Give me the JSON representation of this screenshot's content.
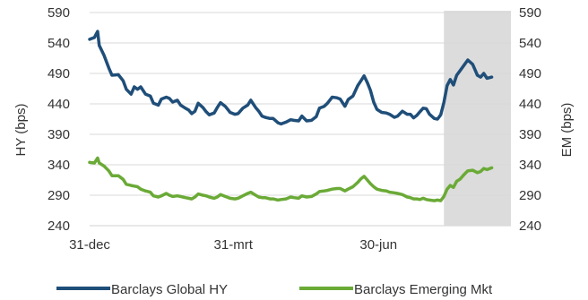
{
  "chart_data": {
    "type": "line",
    "title": "",
    "xlabel": "",
    "ylabel": "HY (bps)",
    "y2label": "EM (bps)",
    "ylim": [
      240,
      590
    ],
    "y2lim": [
      240,
      590
    ],
    "yticks": [
      590,
      540,
      490,
      440,
      390,
      340,
      290,
      240
    ],
    "xticks": [
      {
        "label": "31-dec",
        "day": 0
      },
      {
        "label": "31-mrt",
        "day": 90
      },
      {
        "label": "30-jun",
        "day": 181
      }
    ],
    "xlim_days": [
      0,
      264
    ],
    "shaded_region_days": [
      222,
      264
    ],
    "grid": true,
    "legend_position": "bottom",
    "series": [
      {
        "name": "Barclays Global HY",
        "color": "#1f4e79",
        "axis": "left",
        "points": [
          [
            0,
            546
          ],
          [
            3,
            549
          ],
          [
            5,
            559
          ],
          [
            6,
            536
          ],
          [
            9,
            520
          ],
          [
            12,
            499
          ],
          [
            14,
            487
          ],
          [
            18,
            488
          ],
          [
            21,
            478
          ],
          [
            23,
            464
          ],
          [
            26,
            456
          ],
          [
            28,
            468
          ],
          [
            30,
            464
          ],
          [
            32,
            468
          ],
          [
            35,
            456
          ],
          [
            38,
            453
          ],
          [
            40,
            441
          ],
          [
            43,
            438
          ],
          [
            45,
            448
          ],
          [
            48,
            451
          ],
          [
            50,
            449
          ],
          [
            52,
            443
          ],
          [
            55,
            446
          ],
          [
            57,
            438
          ],
          [
            60,
            433
          ],
          [
            62,
            430
          ],
          [
            64,
            424
          ],
          [
            66,
            428
          ],
          [
            68,
            441
          ],
          [
            71,
            434
          ],
          [
            73,
            427
          ],
          [
            75,
            422
          ],
          [
            78,
            425
          ],
          [
            80,
            434
          ],
          [
            82,
            442
          ],
          [
            85,
            436
          ],
          [
            88,
            426
          ],
          [
            91,
            423
          ],
          [
            93,
            424
          ],
          [
            96,
            433
          ],
          [
            99,
            438
          ],
          [
            101,
            446
          ],
          [
            104,
            434
          ],
          [
            106,
            428
          ],
          [
            108,
            420
          ],
          [
            110,
            418
          ],
          [
            113,
            416
          ],
          [
            115,
            416
          ],
          [
            118,
            409
          ],
          [
            120,
            407
          ],
          [
            123,
            410
          ],
          [
            126,
            414
          ],
          [
            128,
            413
          ],
          [
            131,
            412
          ],
          [
            133,
            420
          ],
          [
            136,
            412
          ],
          [
            139,
            413
          ],
          [
            142,
            419
          ],
          [
            144,
            433
          ],
          [
            147,
            436
          ],
          [
            149,
            441
          ],
          [
            152,
            451
          ],
          [
            155,
            450
          ],
          [
            157,
            448
          ],
          [
            160,
            436
          ],
          [
            162,
            447
          ],
          [
            165,
            453
          ],
          [
            168,
            470
          ],
          [
            170,
            478
          ],
          [
            172,
            486
          ],
          [
            174,
            475
          ],
          [
            176,
            462
          ],
          [
            178,
            443
          ],
          [
            180,
            431
          ],
          [
            183,
            426
          ],
          [
            186,
            425
          ],
          [
            188,
            423
          ],
          [
            191,
            418
          ],
          [
            193,
            420
          ],
          [
            196,
            428
          ],
          [
            199,
            423
          ],
          [
            201,
            423
          ],
          [
            203,
            417
          ],
          [
            205,
            421
          ],
          [
            207,
            427
          ],
          [
            209,
            433
          ],
          [
            211,
            432
          ],
          [
            213,
            423
          ],
          [
            216,
            416
          ],
          [
            218,
            415
          ],
          [
            220,
            422
          ],
          [
            222,
            442
          ],
          [
            224,
            470
          ],
          [
            226,
            480
          ],
          [
            228,
            471
          ],
          [
            230,
            487
          ],
          [
            232,
            494
          ],
          [
            235,
            505
          ],
          [
            237,
            512
          ],
          [
            240,
            505
          ],
          [
            243,
            487
          ],
          [
            245,
            484
          ],
          [
            247,
            490
          ],
          [
            249,
            482
          ],
          [
            252,
            484
          ]
        ]
      },
      {
        "name": "Barclays Emerging Mkt",
        "color": "#6aaa36",
        "axis": "left",
        "points": [
          [
            0,
            344
          ],
          [
            3,
            343
          ],
          [
            5,
            351
          ],
          [
            6,
            343
          ],
          [
            9,
            338
          ],
          [
            12,
            330
          ],
          [
            14,
            322
          ],
          [
            18,
            322
          ],
          [
            21,
            316
          ],
          [
            23,
            308
          ],
          [
            26,
            306
          ],
          [
            28,
            305
          ],
          [
            30,
            304
          ],
          [
            32,
            300
          ],
          [
            35,
            297
          ],
          [
            38,
            295
          ],
          [
            40,
            289
          ],
          [
            43,
            287
          ],
          [
            45,
            289
          ],
          [
            48,
            293
          ],
          [
            50,
            290
          ],
          [
            52,
            288
          ],
          [
            55,
            289
          ],
          [
            57,
            288
          ],
          [
            60,
            286
          ],
          [
            62,
            285
          ],
          [
            64,
            284
          ],
          [
            66,
            287
          ],
          [
            68,
            292
          ],
          [
            71,
            290
          ],
          [
            73,
            289
          ],
          [
            75,
            287
          ],
          [
            78,
            285
          ],
          [
            80,
            287
          ],
          [
            82,
            291
          ],
          [
            85,
            288
          ],
          [
            88,
            285
          ],
          [
            91,
            284
          ],
          [
            93,
            285
          ],
          [
            96,
            289
          ],
          [
            99,
            293
          ],
          [
            101,
            295
          ],
          [
            104,
            290
          ],
          [
            106,
            287
          ],
          [
            108,
            286
          ],
          [
            110,
            286
          ],
          [
            113,
            284
          ],
          [
            115,
            284
          ],
          [
            118,
            282
          ],
          [
            120,
            283
          ],
          [
            123,
            284
          ],
          [
            126,
            287
          ],
          [
            128,
            286
          ],
          [
            131,
            285
          ],
          [
            133,
            289
          ],
          [
            136,
            287
          ],
          [
            139,
            288
          ],
          [
            142,
            292
          ],
          [
            144,
            296
          ],
          [
            147,
            297
          ],
          [
            149,
            298
          ],
          [
            152,
            300
          ],
          [
            155,
            301
          ],
          [
            157,
            301
          ],
          [
            160,
            297
          ],
          [
            162,
            300
          ],
          [
            165,
            304
          ],
          [
            168,
            311
          ],
          [
            170,
            317
          ],
          [
            172,
            321
          ],
          [
            174,
            315
          ],
          [
            176,
            309
          ],
          [
            178,
            304
          ],
          [
            180,
            300
          ],
          [
            183,
            298
          ],
          [
            186,
            297
          ],
          [
            188,
            295
          ],
          [
            191,
            294
          ],
          [
            193,
            293
          ],
          [
            196,
            291
          ],
          [
            199,
            287
          ],
          [
            201,
            286
          ],
          [
            203,
            284
          ],
          [
            205,
            284
          ],
          [
            207,
            283
          ],
          [
            209,
            285
          ],
          [
            211,
            283
          ],
          [
            213,
            282
          ],
          [
            216,
            281
          ],
          [
            218,
            282
          ],
          [
            220,
            281
          ],
          [
            222,
            288
          ],
          [
            224,
            300
          ],
          [
            226,
            306
          ],
          [
            228,
            303
          ],
          [
            230,
            313
          ],
          [
            232,
            316
          ],
          [
            235,
            325
          ],
          [
            237,
            330
          ],
          [
            240,
            331
          ],
          [
            243,
            327
          ],
          [
            245,
            329
          ],
          [
            247,
            334
          ],
          [
            249,
            332
          ],
          [
            252,
            335
          ]
        ]
      }
    ]
  }
}
